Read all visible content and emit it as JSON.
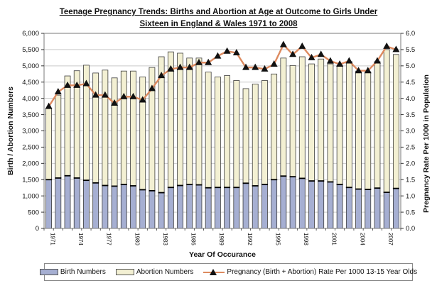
{
  "title": {
    "line1": "Teenage Pregnancy Trends: Births and Abortion at Age at Outcome to Girls Under",
    "line2": "Sixteen in England & Wales 1971 to 2008"
  },
  "legend": {
    "birth_label": "Birth Numbers",
    "abortion_label": "Abortion Numbers",
    "rate_label": "Pregnancy (Birth + Abortion)  Rate Per 1000 13-15 Year Olds"
  },
  "colors": {
    "birth_fill": "#a6afd2",
    "abortion_fill": "#f3f0d3",
    "bar_stroke": "#3c3c3c",
    "birth_cap": "#000000",
    "rate_line": "#dd8a5f",
    "rate_marker": "#111111",
    "gridline": "#c9c9c9",
    "plot_border": "#7a7a7a",
    "text": "#111111"
  },
  "chart_data": {
    "type": "bar",
    "subtype": "stacked-bars-with-line-overlay",
    "title": "Teenage Pregnancy Trends: Births and Abortion at Age at Outcome to Girls Under Sixteen in England & Wales 1971 to 2008",
    "xlabel": "Year Of Occurance",
    "ylabel_left": "Birth / Abortion Numbers",
    "ylabel_right": "Pregnancy Rate Per 1000 in Population",
    "grid": true,
    "legend_position": "bottom",
    "ylim_left": [
      0,
      6000
    ],
    "ytick_step_left": 500,
    "ylim_right": [
      0.0,
      6.0
    ],
    "ytick_step_right": 0.5,
    "left_tick_labels": [
      "0",
      "500",
      "1,000",
      "1,500",
      "2,000",
      "2,500",
      "3,000",
      "3,500",
      "4,000",
      "4,500",
      "5,000",
      "5,500",
      "6,000"
    ],
    "right_tick_labels": [
      "0.0",
      "0.5",
      "1.0",
      "1.5",
      "2.0",
      "2.5",
      "3.0",
      "3.5",
      "4.0",
      "4.5",
      "5.0",
      "5.5",
      "6.0"
    ],
    "x_labeled_years": [
      1971,
      1974,
      1977,
      1980,
      1983,
      1986,
      1989,
      1992,
      1995,
      1998,
      2001,
      2004,
      2007
    ],
    "categories": [
      1971,
      1972,
      1973,
      1974,
      1975,
      1976,
      1977,
      1978,
      1979,
      1980,
      1981,
      1982,
      1983,
      1984,
      1985,
      1986,
      1987,
      1988,
      1989,
      1990,
      1991,
      1992,
      1993,
      1994,
      1995,
      1996,
      1997,
      1998,
      1999,
      2000,
      2001,
      2002,
      2003,
      2004,
      2005,
      2006,
      2007,
      2008
    ],
    "series": [
      {
        "name": "Birth Numbers",
        "type": "bar",
        "stack": "pregnancy",
        "axis": "left",
        "values": [
          1500,
          1550,
          1620,
          1550,
          1480,
          1400,
          1320,
          1300,
          1350,
          1310,
          1190,
          1160,
          1100,
          1260,
          1320,
          1350,
          1340,
          1250,
          1260,
          1260,
          1260,
          1390,
          1310,
          1350,
          1500,
          1610,
          1590,
          1540,
          1460,
          1460,
          1430,
          1350,
          1260,
          1210,
          1200,
          1240,
          1110,
          1230
        ]
      },
      {
        "name": "Abortion Numbers",
        "type": "bar",
        "stack": "pregnancy",
        "axis": "left",
        "values": [
          2200,
          2550,
          3070,
          3300,
          3540,
          3380,
          3550,
          3330,
          3490,
          3530,
          3470,
          3790,
          4180,
          4170,
          4070,
          3890,
          3900,
          3560,
          3400,
          3440,
          3290,
          2910,
          3130,
          3200,
          3250,
          3630,
          3420,
          3740,
          3600,
          3750,
          3630,
          3670,
          3870,
          3630,
          3620,
          3890,
          4390,
          4120
        ]
      },
      {
        "name": "Pregnancy (Birth + Abortion) Rate Per 1000 13-15 Year Olds",
        "type": "line",
        "axis": "right",
        "values": [
          3.75,
          4.2,
          4.4,
          4.4,
          4.45,
          4.1,
          4.1,
          3.85,
          4.05,
          4.05,
          3.95,
          4.3,
          4.7,
          4.9,
          4.95,
          4.95,
          5.1,
          5.1,
          5.3,
          5.45,
          5.4,
          4.95,
          4.95,
          4.9,
          5.05,
          5.65,
          5.35,
          5.6,
          5.25,
          5.35,
          5.15,
          5.05,
          5.15,
          4.85,
          4.85,
          5.15,
          5.6,
          5.5
        ]
      }
    ]
  }
}
